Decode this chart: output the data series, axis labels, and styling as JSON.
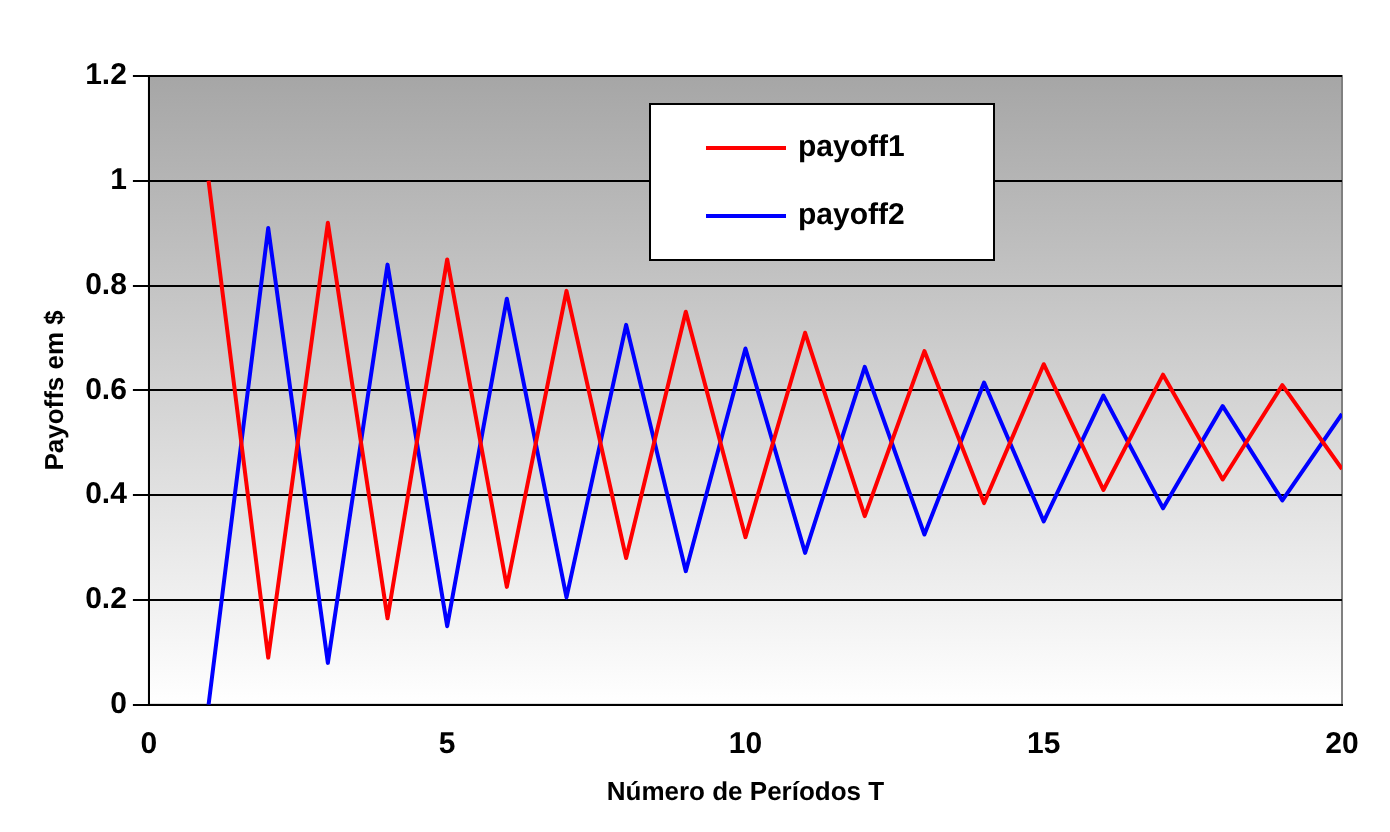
{
  "chart_data": {
    "type": "line",
    "xlabel": "Número de Períodos T",
    "ylabel": "Payoffs em $",
    "x": [
      1,
      2,
      3,
      4,
      5,
      6,
      7,
      8,
      9,
      10,
      11,
      12,
      13,
      14,
      15,
      16,
      17,
      18,
      19,
      20
    ],
    "series": [
      {
        "name": "payoff1",
        "color": "#ff0000",
        "values": [
          1.0,
          0.09,
          0.92,
          0.165,
          0.85,
          0.225,
          0.79,
          0.28,
          0.75,
          0.32,
          0.71,
          0.36,
          0.675,
          0.385,
          0.65,
          0.41,
          0.63,
          0.43,
          0.61,
          0.45
        ]
      },
      {
        "name": "payoff2",
        "color": "#0000ff",
        "values": [
          0,
          0.91,
          0.08,
          0.84,
          0.15,
          0.775,
          0.205,
          0.725,
          0.255,
          0.68,
          0.29,
          0.645,
          0.325,
          0.615,
          0.35,
          0.59,
          0.375,
          0.57,
          0.39,
          0.555
        ]
      }
    ],
    "xlim": [
      0,
      20
    ],
    "xticks": [
      0,
      5,
      10,
      15,
      20
    ],
    "ylim": [
      0,
      1.2
    ],
    "yticks": [
      0,
      0.2,
      0.4,
      0.6,
      0.8,
      1,
      1.2
    ],
    "grid": "y",
    "legend": "top",
    "marker": "none",
    "line_style": "solid"
  }
}
